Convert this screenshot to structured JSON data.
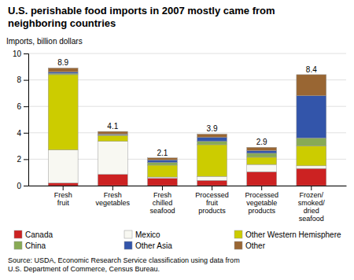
{
  "chart_data": {
    "type": "bar",
    "stacked": true,
    "title": "U.S. perishable food imports in 2007 mostly came from\nneighboring countries",
    "ylabel": "Imports, billion dollars",
    "source": "Source: USDA, Economic Research Service classification using data from\nU.S. Department of Commerce, Census Bureau.",
    "categories": [
      "Fresh\nfruit",
      "Fresh\nvegetables",
      "Fresh\nchilled\nseafood",
      "Processed\nfruit\nproducts",
      "Processed\nvegetable\nproducts",
      "Frozen/\nsmoked/\ndried\nseafood"
    ],
    "series": [
      {
        "name": "Canada",
        "color": "#cc2222",
        "values": [
          0.2,
          0.85,
          0.55,
          0.4,
          1.05,
          1.3
        ]
      },
      {
        "name": "Mexico",
        "color": "#f8f8f2",
        "values": [
          2.5,
          2.5,
          0.1,
          0.3,
          0.55,
          0.2
        ]
      },
      {
        "name": "Other Western Hemisphere",
        "color": "#cccc00",
        "values": [
          5.7,
          0.45,
          0.9,
          2.4,
          0.55,
          1.5
        ]
      },
      {
        "name": "China",
        "color": "#88aa55",
        "values": [
          0.1,
          0.05,
          0.2,
          0.25,
          0.3,
          0.6
        ]
      },
      {
        "name": "Other Asia",
        "color": "#3355aa",
        "values": [
          0.1,
          0.05,
          0.2,
          0.3,
          0.2,
          3.2
        ]
      },
      {
        "name": "Other",
        "color": "#996633",
        "values": [
          0.3,
          0.2,
          0.15,
          0.25,
          0.25,
          1.6
        ]
      }
    ],
    "totals": [
      8.9,
      4.1,
      2.1,
      3.9,
      2.9,
      8.4
    ],
    "ylim": [
      0,
      10
    ],
    "yticks": [
      0,
      2,
      4,
      6,
      8,
      10
    ],
    "grid": true,
    "legend": "bottom"
  }
}
